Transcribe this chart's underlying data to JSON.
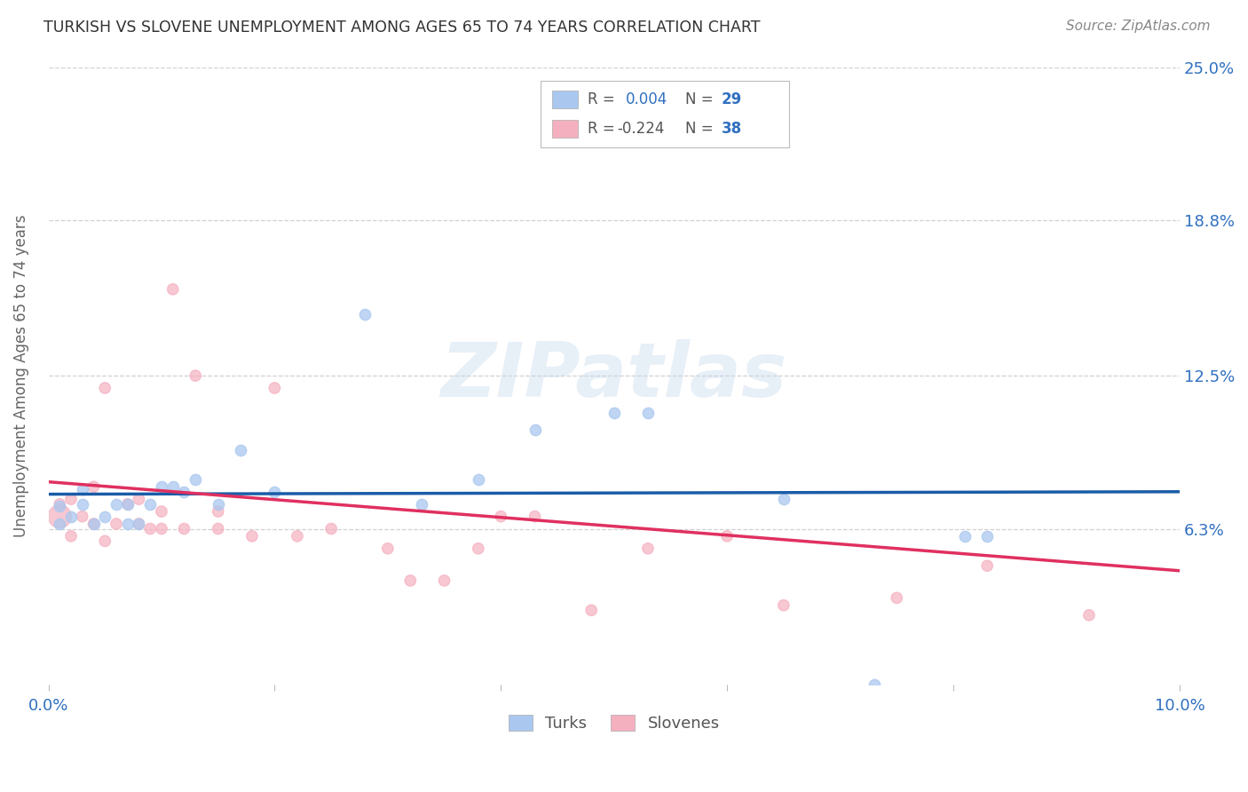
{
  "title": "TURKISH VS SLOVENE UNEMPLOYMENT AMONG AGES 65 TO 74 YEARS CORRELATION CHART",
  "source": "Source: ZipAtlas.com",
  "ylabel": "Unemployment Among Ages 65 to 74 years",
  "xlim": [
    0.0,
    0.1
  ],
  "ylim": [
    0.0,
    0.25
  ],
  "ytick_labels": [
    "6.3%",
    "12.5%",
    "18.8%",
    "25.0%"
  ],
  "ytick_positions": [
    0.063,
    0.125,
    0.188,
    0.25
  ],
  "xtick_positions": [
    0.0,
    0.02,
    0.04,
    0.06,
    0.08,
    0.1
  ],
  "xtick_labels": [
    "0.0%",
    "",
    "",
    "",
    "",
    "10.0%"
  ],
  "grid_color": "#d0d0d0",
  "background_color": "#ffffff",
  "watermark": "ZIPatlas",
  "turks_color": "#aac8ef",
  "slovenes_color": "#f5b0c0",
  "turks_line_color": "#1a5ca8",
  "slovenes_line_color": "#e03060",
  "title_color": "#333333",
  "axis_label_color": "#666666",
  "tick_label_color": "#3070c0",
  "source_color": "#888888",
  "turks_x": [
    0.001,
    0.001,
    0.002,
    0.003,
    0.003,
    0.004,
    0.005,
    0.006,
    0.007,
    0.007,
    0.008,
    0.009,
    0.01,
    0.011,
    0.012,
    0.013,
    0.015,
    0.017,
    0.02,
    0.028,
    0.033,
    0.038,
    0.043,
    0.05,
    0.053,
    0.065,
    0.073,
    0.081,
    0.083
  ],
  "turks_y": [
    0.065,
    0.072,
    0.068,
    0.073,
    0.079,
    0.065,
    0.068,
    0.073,
    0.065,
    0.073,
    0.065,
    0.073,
    0.08,
    0.08,
    0.078,
    0.083,
    0.073,
    0.095,
    0.078,
    0.15,
    0.073,
    0.083,
    0.103,
    0.11,
    0.11,
    0.075,
    0.0,
    0.06,
    0.06
  ],
  "turks_size": 80,
  "slovenes_x": [
    0.001,
    0.001,
    0.002,
    0.002,
    0.003,
    0.004,
    0.004,
    0.005,
    0.005,
    0.006,
    0.007,
    0.008,
    0.008,
    0.009,
    0.01,
    0.01,
    0.011,
    0.012,
    0.013,
    0.015,
    0.015,
    0.018,
    0.02,
    0.022,
    0.025,
    0.03,
    0.032,
    0.035,
    0.038,
    0.04,
    0.043,
    0.048,
    0.053,
    0.06,
    0.065,
    0.075,
    0.083,
    0.092
  ],
  "slovenes_y": [
    0.068,
    0.073,
    0.06,
    0.075,
    0.068,
    0.065,
    0.08,
    0.12,
    0.058,
    0.065,
    0.073,
    0.065,
    0.075,
    0.063,
    0.063,
    0.07,
    0.16,
    0.063,
    0.125,
    0.063,
    0.07,
    0.06,
    0.12,
    0.06,
    0.063,
    0.055,
    0.042,
    0.042,
    0.055,
    0.068,
    0.068,
    0.03,
    0.055,
    0.06,
    0.032,
    0.035,
    0.048,
    0.028
  ],
  "slovenes_size": 80,
  "large_slovene_idx": 0,
  "large_size": 350,
  "turk_line_y_at_0": 0.077,
  "turk_line_y_at_10": 0.078,
  "sloven_line_y_at_0": 0.082,
  "sloven_line_y_at_10": 0.046
}
